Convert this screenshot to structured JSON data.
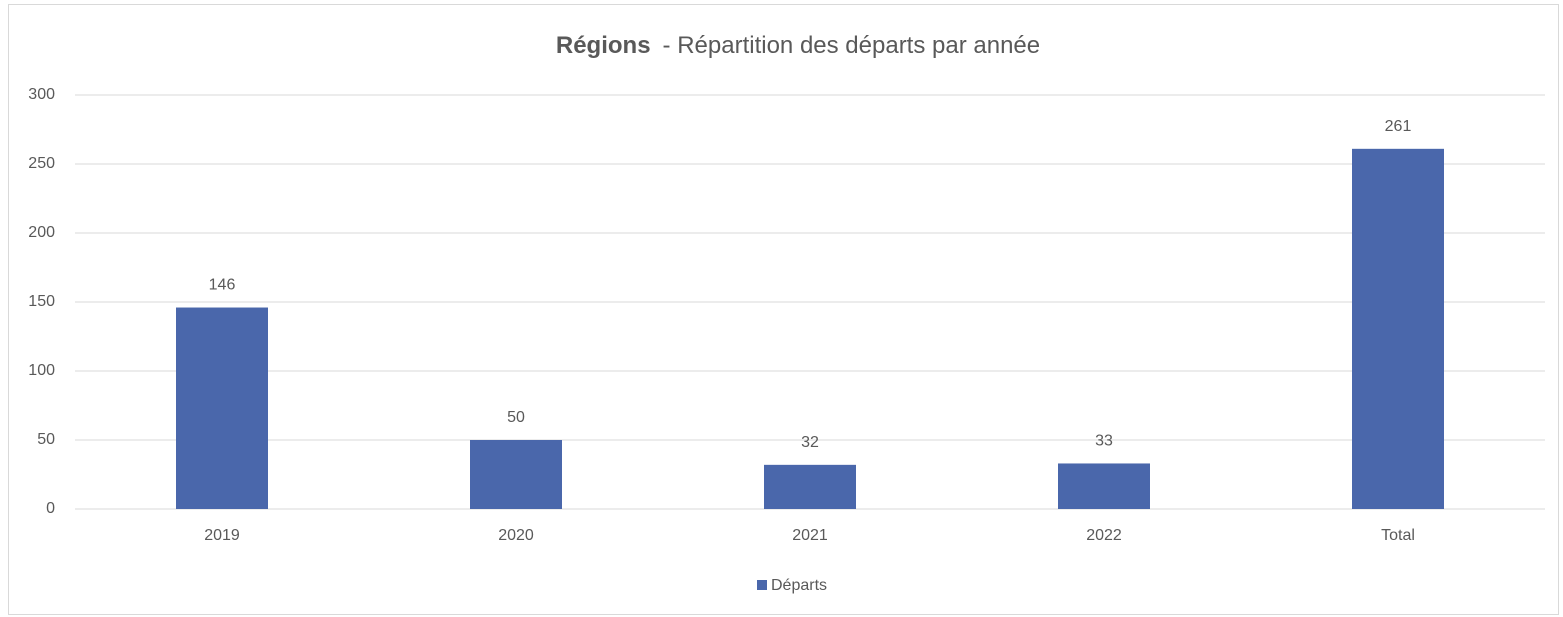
{
  "chart_data": {
    "type": "bar",
    "title": {
      "bold": "Régions",
      "text": "- Répartition des départs par année"
    },
    "categories": [
      "2019",
      "2020",
      "2021",
      "2022",
      "Total"
    ],
    "series": [
      {
        "name": "Départs",
        "color": "#4a67ab",
        "values": [
          146,
          50,
          32,
          33,
          261
        ]
      }
    ],
    "ylim": [
      0,
      300
    ],
    "yticks": [
      0,
      50,
      100,
      150,
      200,
      250,
      300
    ],
    "grid": true,
    "legend": "bottom"
  }
}
